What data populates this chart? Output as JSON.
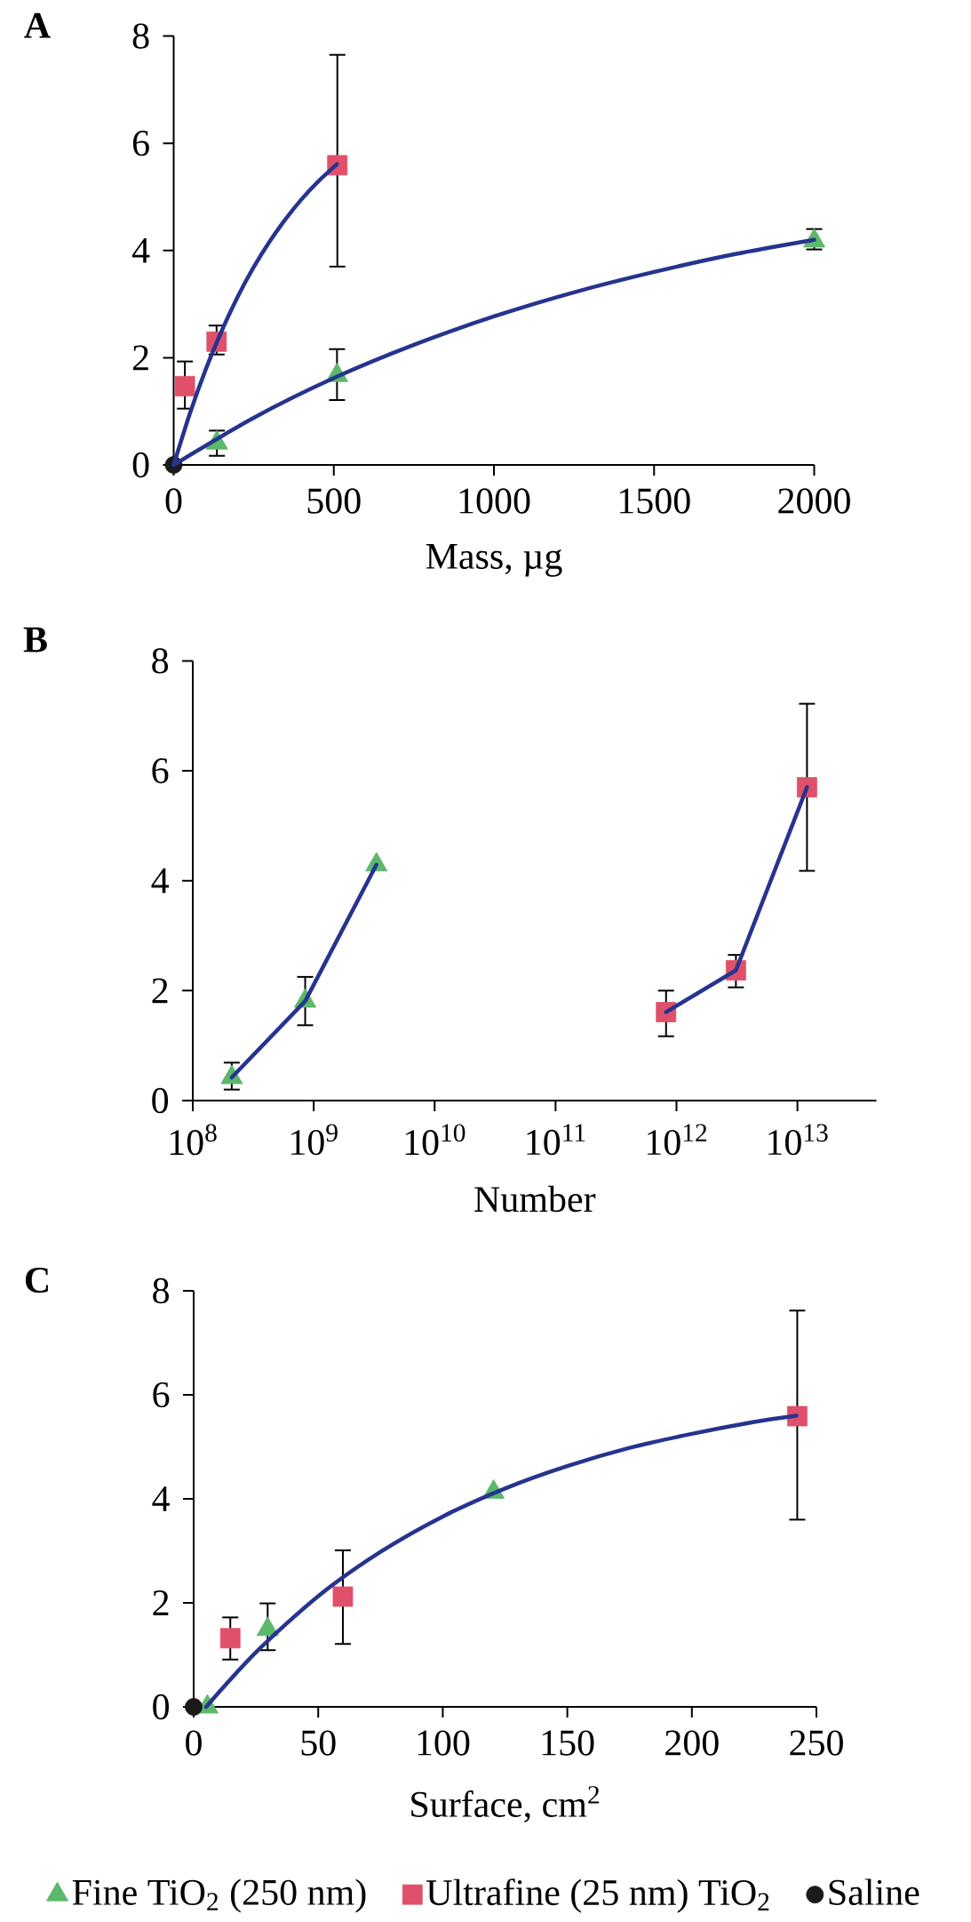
{
  "chart_data": [
    {
      "type": "scatter",
      "title": "A",
      "xlabel": "Mass, µg",
      "xlim": [
        0,
        2000
      ],
      "xticks": [
        0,
        500,
        1000,
        1500,
        2000
      ],
      "ylim": [
        0,
        8
      ],
      "yticks": [
        0,
        2,
        4,
        6,
        8
      ],
      "series": [
        {
          "type": "line",
          "color": "#26348f",
          "marker": "none",
          "x": [
            0,
            50,
            100,
            150,
            200,
            250,
            300,
            350,
            400,
            450,
            510
          ],
          "values": [
            0,
            0.95,
            1.78,
            2.5,
            3.14,
            3.69,
            4.17,
            4.59,
            4.96,
            5.28,
            5.61
          ]
        },
        {
          "type": "line",
          "color": "#26348f",
          "marker": "none",
          "x": [
            0,
            250,
            500,
            750,
            1000,
            1250,
            1500,
            1750,
            2000
          ],
          "values": [
            0,
            0.88,
            1.62,
            2.24,
            2.77,
            3.22,
            3.6,
            3.93,
            4.2
          ]
        },
        {
          "color": "#5cb86a",
          "marker": "triangle",
          "x": [
            135,
            510,
            2000
          ],
          "values": [
            0.41,
            1.67,
            4.18
          ],
          "errors": [
            [
              0.17,
              0.64
            ],
            [
              1.21,
              2.16
            ],
            [
              4.02,
              4.4
            ]
          ]
        },
        {
          "color": "#e0506a",
          "marker": "square",
          "x": [
            35,
            134,
            511
          ],
          "values": [
            1.47,
            2.3,
            5.59
          ],
          "errors": [
            [
              1.05,
              1.93
            ],
            [
              2.06,
              2.6
            ],
            [
              3.7,
              7.65
            ]
          ]
        },
        {
          "color": "#1a1a1a",
          "marker": "circle",
          "x": [
            0
          ],
          "values": [
            0
          ]
        }
      ]
    },
    {
      "type": "scatter",
      "title": "B",
      "xlabel": "Number",
      "log": "x",
      "xlim": [
        100000000.0,
        45000000000000.0
      ],
      "xticks": [
        {
          "value": 100000000.0,
          "label": "10$^{8}$"
        },
        {
          "value": 1000000000.0,
          "label": "10$^{9}$"
        },
        {
          "value": 10000000000.0,
          "label": "10$^{10}$"
        },
        {
          "value": 100000000000.0,
          "label": "10$^{11}$"
        },
        {
          "value": 1000000000000.0,
          "label": "10$^{12}$"
        },
        {
          "value": 10000000000000.0,
          "label": "10$^{13}$"
        }
      ],
      "ylim": [
        0,
        8
      ],
      "yticks": [
        0,
        2,
        4,
        6,
        8
      ],
      "series": [
        {
          "type": "line",
          "color": "#26348f",
          "marker": "none",
          "x": [
            210000000.0,
            850000000.0,
            3300000000.0
          ],
          "values": [
            0.42,
            1.81,
            4.29
          ]
        },
        {
          "type": "line",
          "color": "#26348f",
          "marker": "none",
          "x": [
            820000000000.0,
            3100000000000.0,
            12000000000000.0
          ],
          "values": [
            1.61,
            2.37,
            5.7
          ]
        },
        {
          "color": "#5cb86a",
          "marker": "triangle",
          "x": [
            210000000.0,
            850000000.0,
            3300000000.0
          ],
          "values": [
            0.42,
            1.81,
            4.29
          ],
          "errors": [
            [
              0.2,
              0.69
            ],
            [
              1.37,
              2.25
            ],
            null
          ]
        },
        {
          "color": "#e0506a",
          "marker": "square",
          "x": [
            820000000000.0,
            3100000000000.0,
            12000000000000.0
          ],
          "values": [
            1.61,
            2.37,
            5.7
          ],
          "errors": [
            [
              1.17,
              2.0
            ],
            [
              2.06,
              2.65
            ],
            [
              4.18,
              7.22
            ]
          ]
        }
      ]
    },
    {
      "type": "scatter",
      "title": "C",
      "xlabel": "Surface, cm$^{2}$",
      "xlim": [
        0,
        250
      ],
      "xticks": [
        0,
        50,
        100,
        150,
        200,
        250
      ],
      "ylim": [
        0,
        8
      ],
      "yticks": [
        0,
        2,
        4,
        6,
        8
      ],
      "legend": "bottom",
      "series": [
        {
          "type": "line",
          "color": "#26348f",
          "marker": "none",
          "x": [
            5,
            25,
            50,
            75,
            100,
            125,
            150,
            175,
            200,
            225,
            242
          ],
          "values": [
            0,
            1.05,
            2.13,
            2.98,
            3.66,
            4.2,
            4.63,
            4.98,
            5.25,
            5.48,
            5.6
          ]
        },
        {
          "name": "Fine TiO$_{2}$ (250 nm)",
          "color": "#5cb86a",
          "marker": "triangle",
          "x": [
            5.5,
            29.7,
            120.4
          ],
          "values": [
            0,
            1.49,
            4.13
          ],
          "errors": [
            null,
            [
              1.09,
              1.99
            ],
            null
          ]
        },
        {
          "name": "Ultrafine (25 nm) TiO$_{2}$",
          "color": "#e0506a",
          "marker": "square",
          "x": [
            14.7,
            59.9,
            242.3
          ],
          "values": [
            1.32,
            2.12,
            5.59
          ],
          "errors": [
            [
              0.91,
              1.72
            ],
            [
              1.21,
              3.01
            ],
            [
              3.6,
              7.62
            ]
          ]
        },
        {
          "name": "Saline",
          "color": "#1a1a1a",
          "marker": "circle",
          "x": [
            0
          ],
          "values": [
            0
          ]
        }
      ]
    }
  ]
}
